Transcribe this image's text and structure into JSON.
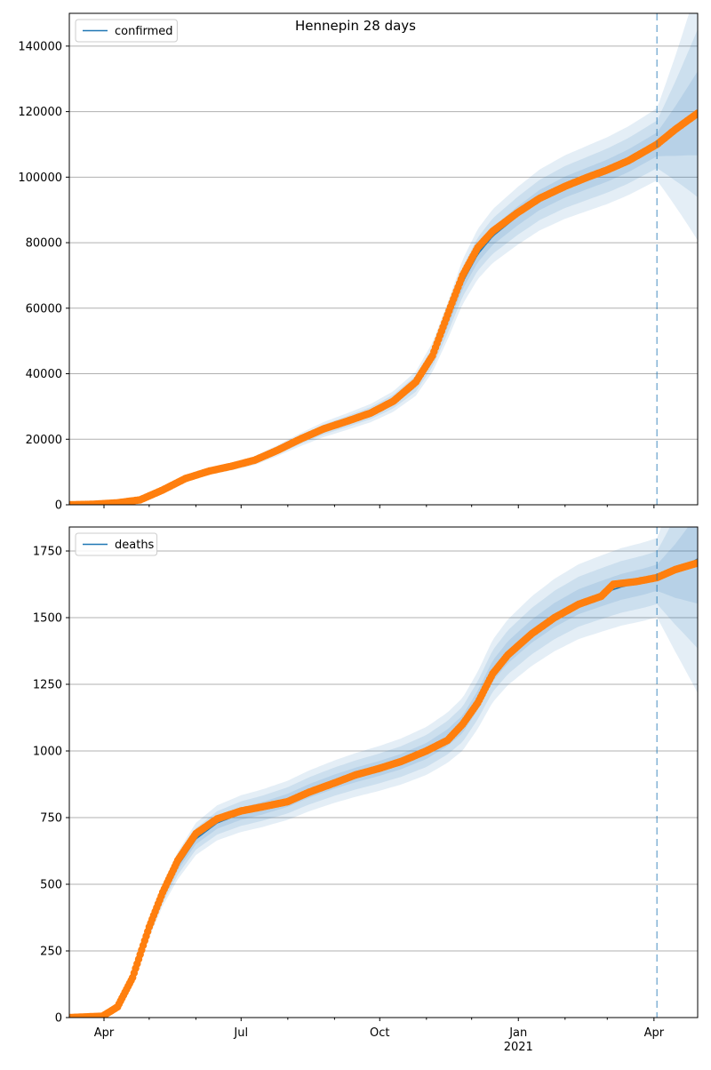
{
  "figure": {
    "title": "Hennepin 28 days"
  },
  "colors": {
    "fit_line": "#1f77b4",
    "observed": "#ff7f0e",
    "band": "#1f77b4",
    "grid": "#b0b0b0",
    "forecast_start_line": "#1f77b4"
  },
  "x_axis": {
    "range": [
      "2020-03-09",
      "2021-04-30"
    ],
    "major_ticks": [
      {
        "date": "2020-04-01",
        "label": "Apr"
      },
      {
        "date": "2020-07-01",
        "label": "Jul"
      },
      {
        "date": "2020-10-01",
        "label": "Oct"
      },
      {
        "date": "2021-01-01",
        "label": "Jan"
      },
      {
        "date": "2021-04-01",
        "label": "Apr"
      }
    ],
    "year_label": {
      "date": "2021-01-01",
      "label": "2021"
    },
    "minor_ticks": [
      "2020-05-01",
      "2020-06-01",
      "2020-08-01",
      "2020-09-01",
      "2020-11-01",
      "2020-12-01",
      "2021-02-01",
      "2021-03-01"
    ],
    "forecast_start": "2021-04-03"
  },
  "chart_data": [
    {
      "type": "line",
      "name": "confirmed",
      "legend": {
        "label": "confirmed",
        "position": "upper left"
      },
      "grid": true,
      "ylim": [
        0,
        150000
      ],
      "y_ticks": [
        0,
        20000,
        40000,
        60000,
        80000,
        100000,
        120000,
        140000
      ],
      "band_half_width_fraction": [
        0.033,
        0.066,
        0.1
      ],
      "fit": [
        [
          "2020-03-09",
          0
        ],
        [
          "2020-03-25",
          150
        ],
        [
          "2020-04-10",
          600
        ],
        [
          "2020-04-25",
          1500
        ],
        [
          "2020-05-10",
          4500
        ],
        [
          "2020-05-25",
          8000
        ],
        [
          "2020-06-10",
          10200
        ],
        [
          "2020-06-25",
          11700
        ],
        [
          "2020-07-10",
          13500
        ],
        [
          "2020-07-25",
          16500
        ],
        [
          "2020-08-10",
          20000
        ],
        [
          "2020-08-25",
          23000
        ],
        [
          "2020-09-10",
          25500
        ],
        [
          "2020-09-25",
          28000
        ],
        [
          "2020-10-10",
          31500
        ],
        [
          "2020-10-25",
          37000
        ],
        [
          "2020-11-05",
          45000
        ],
        [
          "2020-11-15",
          56000
        ],
        [
          "2020-11-25",
          68000
        ],
        [
          "2020-12-05",
          76500
        ],
        [
          "2020-12-15",
          82000
        ],
        [
          "2020-12-31",
          88000
        ],
        [
          "2021-01-15",
          93000
        ],
        [
          "2021-02-01",
          97000
        ],
        [
          "2021-02-15",
          99500
        ],
        [
          "2021-03-01",
          102000
        ],
        [
          "2021-03-15",
          105000
        ],
        [
          "2021-04-03",
          110000
        ],
        [
          "2021-04-15",
          114000
        ],
        [
          "2021-04-30",
          119500
        ]
      ],
      "observed": [
        [
          "2020-03-09",
          0
        ],
        [
          "2020-03-25",
          150
        ],
        [
          "2020-04-10",
          600
        ],
        [
          "2020-04-25",
          1500
        ],
        [
          "2020-05-10",
          4500
        ],
        [
          "2020-05-25",
          8000
        ],
        [
          "2020-06-10",
          10300
        ],
        [
          "2020-06-25",
          11800
        ],
        [
          "2020-07-10",
          13600
        ],
        [
          "2020-07-25",
          16600
        ],
        [
          "2020-08-10",
          20200
        ],
        [
          "2020-08-25",
          23200
        ],
        [
          "2020-09-10",
          25600
        ],
        [
          "2020-09-25",
          28000
        ],
        [
          "2020-10-10",
          31600
        ],
        [
          "2020-10-25",
          37500
        ],
        [
          "2020-11-05",
          45500
        ],
        [
          "2020-11-15",
          58000
        ],
        [
          "2020-11-25",
          70000
        ],
        [
          "2020-12-05",
          78500
        ],
        [
          "2020-12-15",
          83500
        ],
        [
          "2020-12-31",
          89000
        ],
        [
          "2021-01-15",
          93500
        ],
        [
          "2021-02-01",
          97200
        ],
        [
          "2021-02-15",
          99800
        ],
        [
          "2021-03-01",
          102200
        ],
        [
          "2021-03-15",
          105000
        ],
        [
          "2021-04-03",
          110000
        ],
        [
          "2021-04-15",
          114500
        ],
        [
          "2021-04-30",
          119500
        ]
      ]
    },
    {
      "type": "line",
      "name": "deaths",
      "legend": {
        "label": "deaths",
        "position": "upper left"
      },
      "grid": true,
      "ylim": [
        0,
        1840
      ],
      "y_ticks": [
        0,
        250,
        500,
        750,
        1000,
        1250,
        1500,
        1750
      ],
      "band_half_width_fraction": [
        0.03,
        0.06,
        0.09
      ],
      "fit": [
        [
          "2020-03-09",
          0
        ],
        [
          "2020-03-31",
          5
        ],
        [
          "2020-04-10",
          40
        ],
        [
          "2020-04-20",
          150
        ],
        [
          "2020-05-01",
          330
        ],
        [
          "2020-05-10",
          460
        ],
        [
          "2020-05-20",
          570
        ],
        [
          "2020-06-01",
          670
        ],
        [
          "2020-06-15",
          730
        ],
        [
          "2020-07-01",
          765
        ],
        [
          "2020-07-15",
          785
        ],
        [
          "2020-08-01",
          815
        ],
        [
          "2020-08-15",
          850
        ],
        [
          "2020-09-01",
          885
        ],
        [
          "2020-09-15",
          910
        ],
        [
          "2020-10-01",
          935
        ],
        [
          "2020-10-15",
          960
        ],
        [
          "2020-11-01",
          1000
        ],
        [
          "2020-11-15",
          1050
        ],
        [
          "2020-11-25",
          1100
        ],
        [
          "2020-12-05",
          1190
        ],
        [
          "2020-12-15",
          1300
        ],
        [
          "2020-12-25",
          1370
        ],
        [
          "2021-01-10",
          1450
        ],
        [
          "2021-01-25",
          1510
        ],
        [
          "2021-02-10",
          1560
        ],
        [
          "2021-02-25",
          1590
        ],
        [
          "2021-03-10",
          1615
        ],
        [
          "2021-03-25",
          1635
        ],
        [
          "2021-04-03",
          1650
        ],
        [
          "2021-04-15",
          1675
        ],
        [
          "2021-04-30",
          1720
        ]
      ],
      "observed": [
        [
          "2020-03-09",
          0
        ],
        [
          "2020-03-31",
          5
        ],
        [
          "2020-04-10",
          40
        ],
        [
          "2020-04-20",
          150
        ],
        [
          "2020-05-01",
          340
        ],
        [
          "2020-05-10",
          470
        ],
        [
          "2020-05-20",
          590
        ],
        [
          "2020-06-01",
          690
        ],
        [
          "2020-06-15",
          745
        ],
        [
          "2020-07-01",
          775
        ],
        [
          "2020-07-15",
          790
        ],
        [
          "2020-08-01",
          810
        ],
        [
          "2020-08-15",
          845
        ],
        [
          "2020-09-01",
          880
        ],
        [
          "2020-09-15",
          910
        ],
        [
          "2020-10-01",
          935
        ],
        [
          "2020-10-15",
          960
        ],
        [
          "2020-11-01",
          1000
        ],
        [
          "2020-11-15",
          1040
        ],
        [
          "2020-11-25",
          1100
        ],
        [
          "2020-12-05",
          1180
        ],
        [
          "2020-12-15",
          1290
        ],
        [
          "2020-12-25",
          1360
        ],
        [
          "2021-01-10",
          1440
        ],
        [
          "2021-01-25",
          1500
        ],
        [
          "2021-02-10",
          1550
        ],
        [
          "2021-02-25",
          1580
        ],
        [
          "2021-03-05",
          1625
        ],
        [
          "2021-03-20",
          1635
        ],
        [
          "2021-04-03",
          1650
        ],
        [
          "2021-04-15",
          1680
        ],
        [
          "2021-04-30",
          1705
        ]
      ]
    }
  ]
}
